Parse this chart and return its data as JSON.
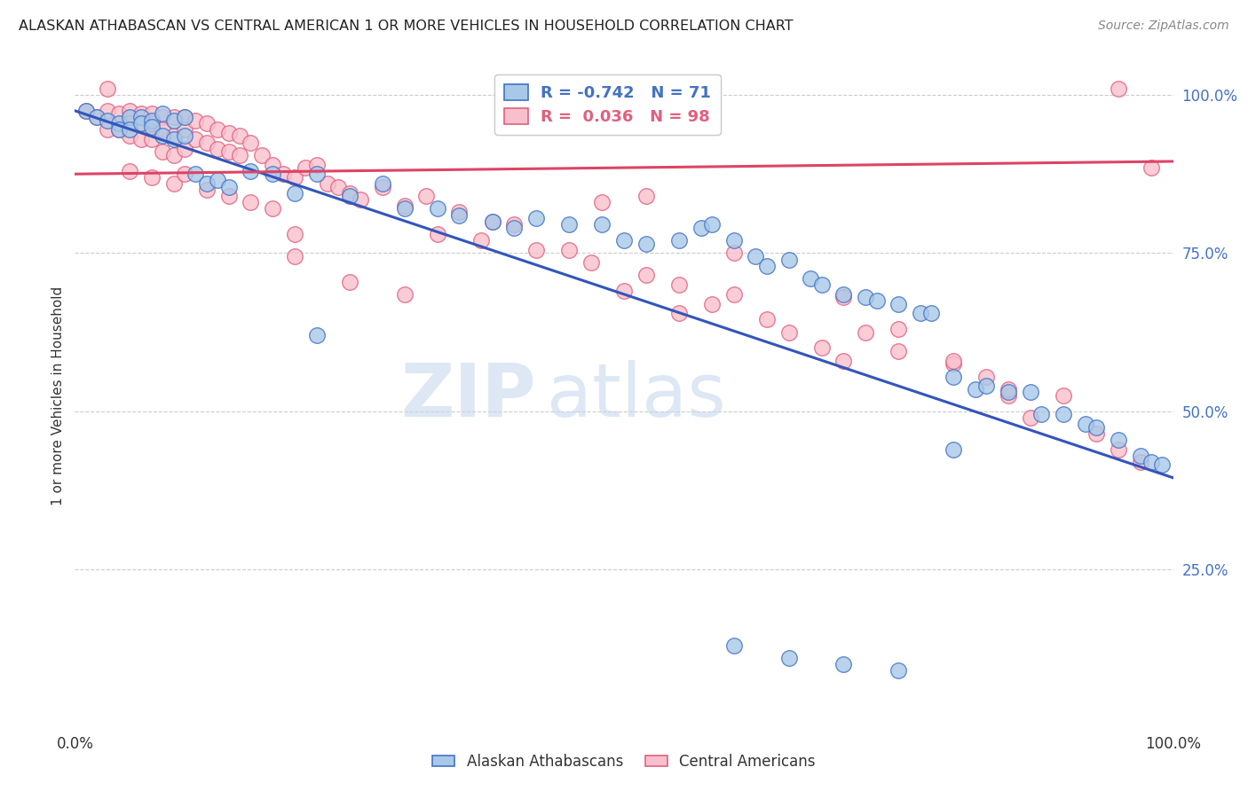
{
  "title": "ALASKAN ATHABASCAN VS CENTRAL AMERICAN 1 OR MORE VEHICLES IN HOUSEHOLD CORRELATION CHART",
  "source": "Source: ZipAtlas.com",
  "ylabel": "1 or more Vehicles in Household",
  "xlim": [
    0.0,
    1.0
  ],
  "ylim": [
    0.0,
    1.05
  ],
  "yticks": [
    0.25,
    0.5,
    0.75,
    1.0
  ],
  "ytick_labels": [
    "25.0%",
    "50.0%",
    "75.0%",
    "100.0%"
  ],
  "xtick_left": "0.0%",
  "xtick_right": "100.0%",
  "watermark_zip": "ZIP",
  "watermark_atlas": "atlas",
  "legend_r_blue": "-0.742",
  "legend_n_blue": "71",
  "legend_r_pink": "0.036",
  "legend_n_pink": "98",
  "blue_face": "#a8c8e8",
  "blue_edge": "#4472c4",
  "pink_face": "#f8c0cc",
  "pink_edge": "#e06080",
  "line_blue_color": "#3355bb",
  "line_pink_color": "#dd4466",
  "grid_color": "#cccccc",
  "title_color": "#222222",
  "source_color": "#888888",
  "ylabel_color": "#333333",
  "blue_line_x0": 0.0,
  "blue_line_y0": 0.975,
  "blue_line_x1": 1.0,
  "blue_line_y1": 0.395,
  "pink_line_x0": 0.0,
  "pink_line_y0": 0.875,
  "pink_line_x1": 1.0,
  "pink_line_y1": 0.895,
  "blue_x": [
    0.01,
    0.02,
    0.03,
    0.04,
    0.04,
    0.05,
    0.05,
    0.06,
    0.06,
    0.07,
    0.07,
    0.08,
    0.08,
    0.09,
    0.09,
    0.1,
    0.1,
    0.11,
    0.12,
    0.13,
    0.14,
    0.16,
    0.18,
    0.2,
    0.22,
    0.25,
    0.28,
    0.3,
    0.33,
    0.35,
    0.38,
    0.4,
    0.42,
    0.45,
    0.48,
    0.5,
    0.52,
    0.55,
    0.57,
    0.58,
    0.6,
    0.62,
    0.63,
    0.65,
    0.67,
    0.68,
    0.7,
    0.72,
    0.73,
    0.75,
    0.77,
    0.78,
    0.8,
    0.82,
    0.83,
    0.85,
    0.87,
    0.88,
    0.9,
    0.92,
    0.93,
    0.95,
    0.97,
    0.98,
    0.99,
    0.6,
    0.65,
    0.7,
    0.75,
    0.8,
    0.22
  ],
  "blue_y": [
    0.975,
    0.965,
    0.96,
    0.955,
    0.945,
    0.965,
    0.945,
    0.965,
    0.955,
    0.96,
    0.95,
    0.97,
    0.935,
    0.96,
    0.93,
    0.965,
    0.935,
    0.875,
    0.86,
    0.865,
    0.855,
    0.88,
    0.875,
    0.845,
    0.875,
    0.84,
    0.86,
    0.82,
    0.82,
    0.81,
    0.8,
    0.79,
    0.805,
    0.795,
    0.795,
    0.77,
    0.765,
    0.77,
    0.79,
    0.795,
    0.77,
    0.745,
    0.73,
    0.74,
    0.71,
    0.7,
    0.685,
    0.68,
    0.675,
    0.67,
    0.655,
    0.655,
    0.555,
    0.535,
    0.54,
    0.53,
    0.53,
    0.495,
    0.495,
    0.48,
    0.475,
    0.455,
    0.43,
    0.42,
    0.415,
    0.13,
    0.11,
    0.1,
    0.09,
    0.44,
    0.62
  ],
  "pink_x": [
    0.01,
    0.02,
    0.03,
    0.03,
    0.04,
    0.04,
    0.05,
    0.05,
    0.05,
    0.06,
    0.06,
    0.06,
    0.07,
    0.07,
    0.07,
    0.08,
    0.08,
    0.08,
    0.09,
    0.09,
    0.09,
    0.1,
    0.1,
    0.1,
    0.11,
    0.11,
    0.12,
    0.12,
    0.13,
    0.13,
    0.14,
    0.14,
    0.15,
    0.15,
    0.16,
    0.17,
    0.18,
    0.19,
    0.2,
    0.21,
    0.22,
    0.23,
    0.24,
    0.25,
    0.26,
    0.28,
    0.3,
    0.32,
    0.33,
    0.35,
    0.37,
    0.38,
    0.4,
    0.42,
    0.45,
    0.47,
    0.5,
    0.52,
    0.55,
    0.58,
    0.6,
    0.63,
    0.65,
    0.68,
    0.7,
    0.72,
    0.75,
    0.8,
    0.83,
    0.85,
    0.87,
    0.9,
    0.93,
    0.95,
    0.97,
    0.2,
    0.25,
    0.3,
    0.55,
    0.03,
    0.05,
    0.07,
    0.09,
    0.1,
    0.12,
    0.14,
    0.16,
    0.18,
    0.2,
    0.95,
    0.98,
    0.48,
    0.52,
    0.6,
    0.7,
    0.75,
    0.8,
    0.85
  ],
  "pink_y": [
    0.975,
    0.965,
    0.975,
    0.945,
    0.97,
    0.945,
    0.975,
    0.955,
    0.935,
    0.97,
    0.955,
    0.93,
    0.97,
    0.955,
    0.93,
    0.965,
    0.945,
    0.91,
    0.965,
    0.935,
    0.905,
    0.965,
    0.945,
    0.915,
    0.96,
    0.93,
    0.955,
    0.925,
    0.945,
    0.915,
    0.94,
    0.91,
    0.935,
    0.905,
    0.925,
    0.905,
    0.89,
    0.875,
    0.87,
    0.885,
    0.89,
    0.86,
    0.855,
    0.845,
    0.835,
    0.855,
    0.825,
    0.84,
    0.78,
    0.815,
    0.77,
    0.8,
    0.795,
    0.755,
    0.755,
    0.735,
    0.69,
    0.715,
    0.7,
    0.67,
    0.685,
    0.645,
    0.625,
    0.6,
    0.58,
    0.625,
    0.595,
    0.575,
    0.555,
    0.525,
    0.49,
    0.525,
    0.465,
    0.44,
    0.42,
    0.745,
    0.705,
    0.685,
    0.655,
    1.01,
    0.88,
    0.87,
    0.86,
    0.875,
    0.85,
    0.84,
    0.83,
    0.82,
    0.78,
    1.01,
    0.885,
    0.83,
    0.84,
    0.75,
    0.68,
    0.63,
    0.58,
    0.535
  ]
}
